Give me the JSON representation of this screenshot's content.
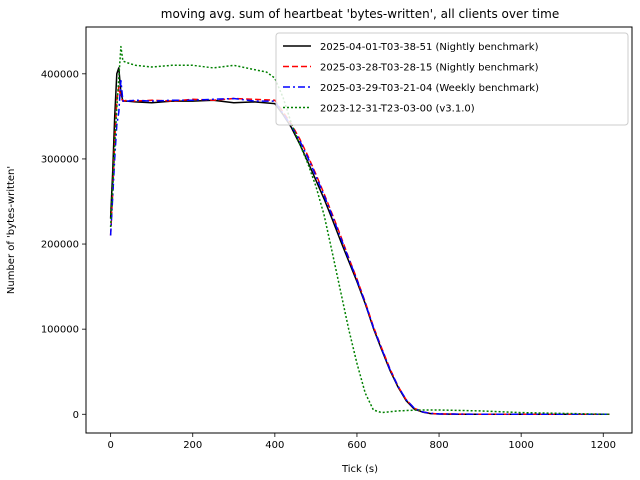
{
  "chart_data": {
    "type": "line",
    "title": "moving avg. sum of heartbeat 'bytes-written', all clients over time",
    "xlabel": "Tick (s)",
    "ylabel": "Number of 'bytes-written'",
    "xlim": [
      -60,
      1270
    ],
    "ylim": [
      -22000,
      455000
    ],
    "xticks": [
      0,
      200,
      400,
      600,
      800,
      1000,
      1200
    ],
    "yticks": [
      0,
      100000,
      200000,
      300000,
      400000
    ],
    "xtick_labels": [
      "0",
      "200",
      "400",
      "600",
      "800",
      "1000",
      "1200"
    ],
    "ytick_labels": [
      "0",
      "100000",
      "200000",
      "300000",
      "400000"
    ],
    "grid": false,
    "legend_position": "top-right",
    "series": [
      {
        "name": "2025-04-01-T03-38-51 (Nightly benchmark)",
        "color": "#000000",
        "style": "solid",
        "x": [
          0,
          5,
          10,
          15,
          20,
          25,
          30,
          40,
          60,
          100,
          150,
          200,
          250,
          300,
          350,
          400,
          420,
          440,
          460,
          480,
          500,
          520,
          540,
          560,
          580,
          600,
          620,
          640,
          660,
          680,
          700,
          720,
          740,
          760,
          780,
          800,
          850,
          900,
          1000,
          1100,
          1215
        ],
        "y": [
          230000,
          285000,
          350000,
          400000,
          407000,
          378000,
          368000,
          368000,
          367000,
          366000,
          368000,
          368000,
          369000,
          366000,
          367000,
          365000,
          352000,
          337000,
          318000,
          297000,
          275000,
          253000,
          229000,
          204000,
          180000,
          156000,
          130000,
          101000,
          76000,
          52000,
          32000,
          16000,
          6000,
          2500,
          800,
          300,
          100,
          0,
          0,
          0,
          0
        ]
      },
      {
        "name": "2025-03-28-T03-28-15 (Nightly benchmark)",
        "color": "#ff0000",
        "style": "dashed",
        "x": [
          0,
          5,
          10,
          15,
          20,
          25,
          30,
          40,
          60,
          100,
          150,
          200,
          250,
          300,
          350,
          400,
          420,
          440,
          460,
          480,
          500,
          520,
          540,
          560,
          580,
          600,
          620,
          640,
          660,
          680,
          700,
          720,
          740,
          760,
          780,
          800,
          850,
          900,
          1000,
          1100,
          1215
        ],
        "y": [
          210000,
          260000,
          320000,
          368000,
          385000,
          372000,
          368000,
          369000,
          368000,
          369000,
          368000,
          370000,
          369000,
          371000,
          370000,
          369000,
          355000,
          341000,
          324000,
          304000,
          282000,
          259000,
          235000,
          210000,
          184000,
          159000,
          132000,
          103000,
          78000,
          54000,
          33000,
          17000,
          7000,
          2800,
          1000,
          400,
          150,
          0,
          0,
          0,
          0
        ]
      },
      {
        "name": "2025-03-29-T03-21-04 (Weekly benchmark)",
        "color": "#0000ff",
        "style": "dashdot",
        "x": [
          0,
          5,
          10,
          15,
          20,
          25,
          30,
          40,
          60,
          100,
          150,
          200,
          250,
          300,
          350,
          400,
          420,
          440,
          460,
          480,
          500,
          520,
          540,
          560,
          580,
          600,
          620,
          640,
          660,
          680,
          700,
          720,
          740,
          760,
          780,
          800,
          850,
          900,
          1000,
          1100,
          1215
        ],
        "y": [
          210000,
          255000,
          300000,
          340000,
          355000,
          392000,
          368000,
          368000,
          369000,
          368000,
          369000,
          369000,
          370000,
          371000,
          368000,
          368000,
          353000,
          339000,
          322000,
          302000,
          280000,
          257000,
          233000,
          208000,
          183000,
          158000,
          131000,
          102000,
          77000,
          53000,
          33000,
          17000,
          7000,
          2800,
          1000,
          400,
          150,
          0,
          0,
          0,
          0
        ]
      },
      {
        "name": "2023-12-31-T23-03-00 (v3.1.0)",
        "color": "#008000",
        "style": "dotted",
        "x": [
          0,
          5,
          10,
          15,
          20,
          25,
          30,
          40,
          60,
          100,
          150,
          200,
          250,
          300,
          350,
          380,
          400,
          420,
          440,
          460,
          480,
          500,
          520,
          540,
          560,
          580,
          600,
          620,
          640,
          660,
          700,
          750,
          800,
          900,
          1000,
          1100,
          1215
        ],
        "y": [
          220000,
          265000,
          315000,
          360000,
          395000,
          432000,
          415000,
          413000,
          410000,
          408000,
          410000,
          410000,
          407000,
          410000,
          405000,
          402000,
          395000,
          372000,
          342000,
          318000,
          295000,
          268000,
          234000,
          190000,
          145000,
          100000,
          60000,
          25000,
          5000,
          2000,
          4000,
          5000,
          5000,
          4000,
          2000,
          1000,
          0
        ]
      }
    ]
  }
}
